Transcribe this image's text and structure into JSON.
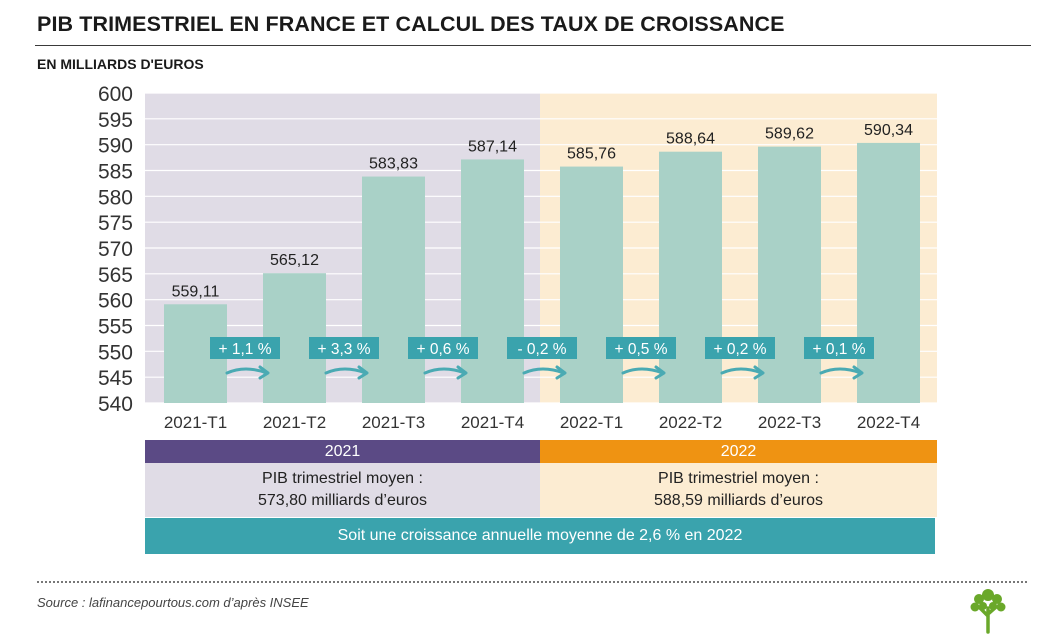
{
  "header": {
    "title": "PIB TRIMESTRIEL EN FRANCE ET CALCUL DES TAUX DE CROISSANCE",
    "subtitle": "EN MILLIARDS D'EUROS"
  },
  "colors": {
    "bar": "#a9d1c7",
    "bg_2021": "#e0dce6",
    "bg_2022": "#fcecd2",
    "year_2021": "#5b4a85",
    "year_2022": "#ef9312",
    "accent": "#3aa3ad",
    "arrow": "#4aaab3"
  },
  "chart_data": {
    "type": "bar",
    "categories": [
      "2021-T1",
      "2021-T2",
      "2021-T3",
      "2021-T4",
      "2022-T1",
      "2022-T2",
      "2022-T3",
      "2022-T4"
    ],
    "values": [
      559.11,
      565.12,
      583.83,
      587.14,
      585.76,
      588.64,
      589.62,
      590.34
    ],
    "value_labels": [
      "559,11",
      "565,12",
      "583,83",
      "587,14",
      "585,76",
      "588,64",
      "589,62",
      "590,34"
    ],
    "growth_labels": [
      "+ 1,1 %",
      "+ 3,3 %",
      "+ 0,6 %",
      "- 0,2 %",
      "+ 0,5 %",
      "+ 0,2 %",
      "+ 0,1 %"
    ],
    "ylim": [
      540,
      600
    ],
    "yticks": [
      540,
      545,
      550,
      555,
      560,
      565,
      570,
      575,
      580,
      585,
      590,
      595,
      600
    ],
    "grid": true
  },
  "years": [
    {
      "label": "2021",
      "avg_line1": "PIB trimestriel moyen  :",
      "avg_line2": "573,80 milliards d’euros"
    },
    {
      "label": "2022",
      "avg_line1": "PIB trimestriel moyen  :",
      "avg_line2": "588,59 milliards d’euros"
    }
  ],
  "growth_summary": "Soit une croissance annuelle moyenne de 2,6 % en 2022",
  "source": "Source : lafinancepourtous.com d’après INSEE",
  "logo_icon": "tree-icon"
}
